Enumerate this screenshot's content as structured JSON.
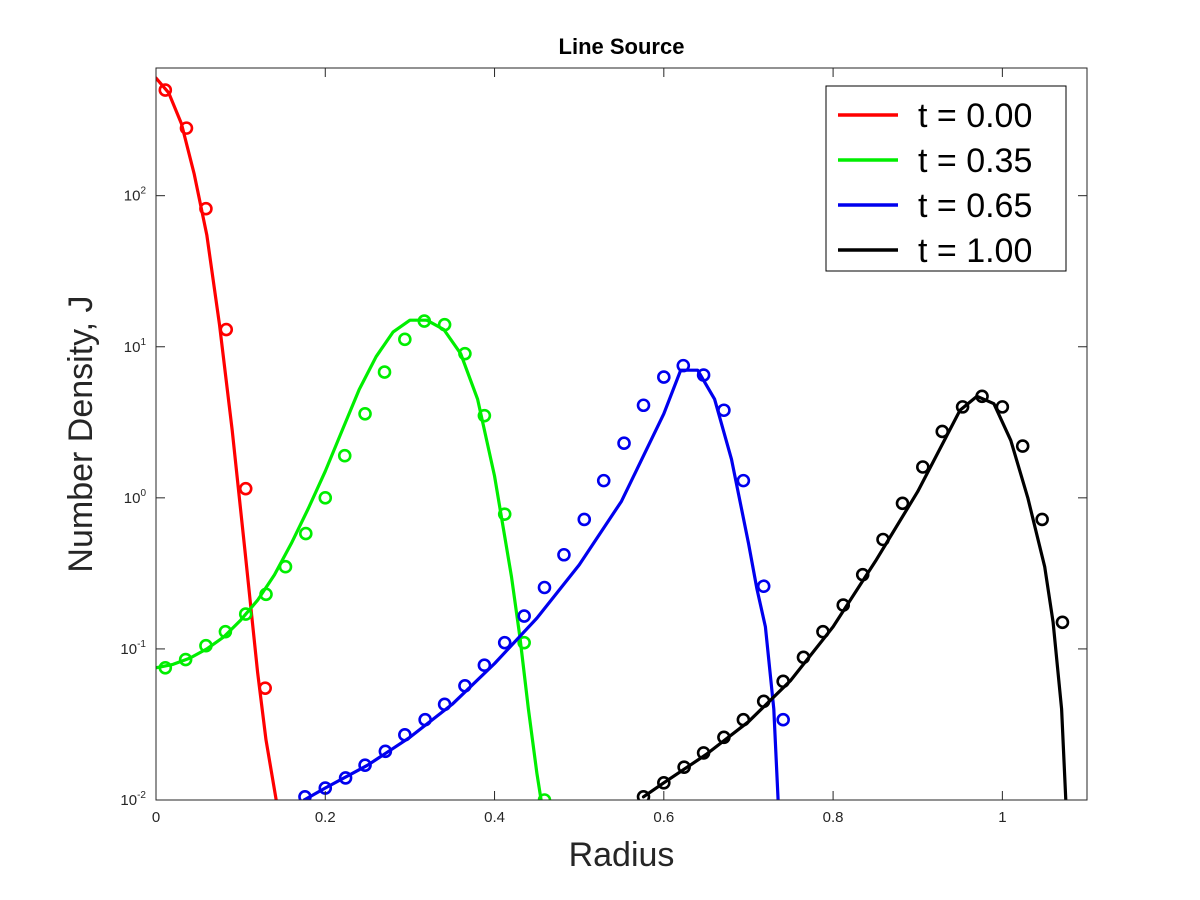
{
  "chart_data": {
    "type": "line",
    "title": "Line Source",
    "xlabel": "Radius",
    "ylabel": "Number Density, J",
    "xlim": [
      0,
      1.1
    ],
    "ylim": [
      0.01,
      700
    ],
    "yscale": "log",
    "grid": false,
    "legend_position": "top-right",
    "x_ticks": [
      {
        "value": 0,
        "label": "0"
      },
      {
        "value": 0.2,
        "label": "0.2"
      },
      {
        "value": 0.4,
        "label": "0.4"
      },
      {
        "value": 0.6,
        "label": "0.6"
      },
      {
        "value": 0.8,
        "label": "0.8"
      },
      {
        "value": 1,
        "label": "1"
      }
    ],
    "y_ticks": [
      {
        "value": 0.01,
        "base": "10",
        "exp": "-2"
      },
      {
        "value": 0.1,
        "base": "10",
        "exp": "-1"
      },
      {
        "value": 1,
        "base": "10",
        "exp": "0"
      },
      {
        "value": 10,
        "base": "10",
        "exp": "1"
      },
      {
        "value": 100,
        "base": "10",
        "exp": "2"
      }
    ],
    "series": [
      {
        "name": "t = 0.00",
        "color": "#ff0000",
        "line_x": [
          0.0,
          0.015,
          0.03,
          0.045,
          0.06,
          0.075,
          0.09,
          0.105,
          0.12,
          0.13,
          0.142
        ],
        "line_y": [
          600,
          480,
          300,
          140,
          55,
          14,
          2.8,
          0.45,
          0.07,
          0.025,
          0.01
        ],
        "markers_x": [
          0.011,
          0.036,
          0.059,
          0.083,
          0.106,
          0.129
        ],
        "markers_y": [
          500,
          280,
          82,
          13,
          1.15,
          0.055
        ]
      },
      {
        "name": "t = 0.35",
        "color": "#00ee00",
        "line_x": [
          0.0,
          0.02,
          0.04,
          0.06,
          0.08,
          0.1,
          0.12,
          0.14,
          0.16,
          0.18,
          0.2,
          0.22,
          0.24,
          0.26,
          0.28,
          0.3,
          0.32,
          0.34,
          0.36,
          0.38,
          0.4,
          0.42,
          0.43,
          0.44,
          0.45,
          0.455
        ],
        "line_y": [
          0.075,
          0.079,
          0.087,
          0.1,
          0.12,
          0.155,
          0.21,
          0.31,
          0.5,
          0.85,
          1.5,
          2.8,
          5.2,
          8.6,
          12.5,
          15.0,
          15.0,
          13.0,
          9.0,
          4.5,
          1.4,
          0.3,
          0.12,
          0.04,
          0.015,
          0.01
        ],
        "markers_x": [
          0.011,
          0.035,
          0.059,
          0.082,
          0.106,
          0.13,
          0.153,
          0.177,
          0.2,
          0.223,
          0.247,
          0.27,
          0.294,
          0.317,
          0.341,
          0.365,
          0.388,
          0.412,
          0.435,
          0.459
        ],
        "markers_y": [
          0.075,
          0.085,
          0.105,
          0.13,
          0.17,
          0.23,
          0.35,
          0.58,
          1.0,
          1.9,
          3.6,
          6.8,
          11.2,
          14.8,
          14.0,
          9.0,
          3.5,
          0.78,
          0.11,
          0.01
        ]
      },
      {
        "name": "t = 0.65",
        "color": "#0000ee",
        "line_x": [
          0.175,
          0.2,
          0.25,
          0.3,
          0.35,
          0.4,
          0.45,
          0.5,
          0.55,
          0.6,
          0.62,
          0.64,
          0.66,
          0.68,
          0.7,
          0.71,
          0.72,
          0.73,
          0.735
        ],
        "line_y": [
          0.01,
          0.012,
          0.017,
          0.026,
          0.043,
          0.08,
          0.16,
          0.36,
          0.95,
          3.6,
          7.0,
          7.0,
          4.5,
          1.8,
          0.5,
          0.25,
          0.14,
          0.04,
          0.01
        ],
        "markers_x": [
          0.176,
          0.2,
          0.224,
          0.247,
          0.271,
          0.294,
          0.318,
          0.341,
          0.365,
          0.388,
          0.412,
          0.435,
          0.459,
          0.482,
          0.506,
          0.529,
          0.553,
          0.576,
          0.6,
          0.623,
          0.647,
          0.671,
          0.694,
          0.718,
          0.741
        ],
        "markers_y": [
          0.0105,
          0.012,
          0.014,
          0.017,
          0.021,
          0.027,
          0.034,
          0.043,
          0.057,
          0.078,
          0.11,
          0.165,
          0.255,
          0.42,
          0.72,
          1.3,
          2.3,
          4.1,
          6.3,
          7.5,
          6.5,
          3.8,
          1.3,
          0.26,
          0.034
        ]
      },
      {
        "name": "t = 1.00",
        "color": "#000000",
        "line_x": [
          0.576,
          0.6,
          0.65,
          0.7,
          0.75,
          0.8,
          0.85,
          0.9,
          0.95,
          0.97,
          0.99,
          1.01,
          1.03,
          1.05,
          1.06,
          1.07,
          1.075
        ],
        "line_y": [
          0.0105,
          0.013,
          0.02,
          0.033,
          0.062,
          0.14,
          0.38,
          1.1,
          3.8,
          4.7,
          4.2,
          2.4,
          1.0,
          0.35,
          0.15,
          0.04,
          0.01
        ],
        "markers_x": [
          0.576,
          0.6,
          0.624,
          0.647,
          0.671,
          0.694,
          0.718,
          0.741,
          0.765,
          0.788,
          0.812,
          0.835,
          0.859,
          0.882,
          0.906,
          0.929,
          0.953,
          0.976,
          1.0,
          1.024,
          1.047,
          1.071
        ],
        "markers_y": [
          0.0105,
          0.013,
          0.0165,
          0.0205,
          0.026,
          0.034,
          0.045,
          0.061,
          0.088,
          0.13,
          0.195,
          0.31,
          0.53,
          0.92,
          1.6,
          2.75,
          4.0,
          4.7,
          4.0,
          2.2,
          0.72,
          0.15
        ]
      }
    ]
  }
}
